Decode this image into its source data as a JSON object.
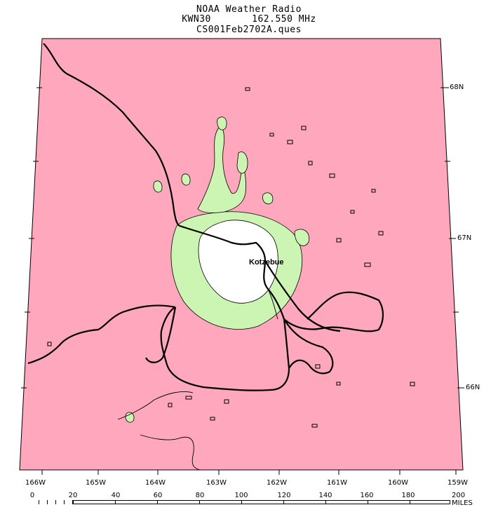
{
  "header": {
    "line1": "NOAA Weather Radio",
    "line2": "KWN30       162.550 MHz",
    "line3": "CS001Feb2702A.ques"
  },
  "latitude_labels": [
    "68N",
    "67N",
    "66N"
  ],
  "longitude_labels": [
    "166W",
    "165W",
    "164W",
    "163W",
    "162W",
    "161W",
    "160W",
    "159W"
  ],
  "scale": {
    "ticks": [
      "0",
      "20",
      "40",
      "60",
      "80",
      "100",
      "120",
      "140",
      "160",
      "180",
      "200 MILES"
    ]
  },
  "city": "Kotzebue",
  "colors": {
    "no_coverage": "#ffa8bd",
    "fringe_coverage": "#ccf5b4",
    "reliable_coverage": "#ffffff",
    "coastline": "#000000"
  }
}
